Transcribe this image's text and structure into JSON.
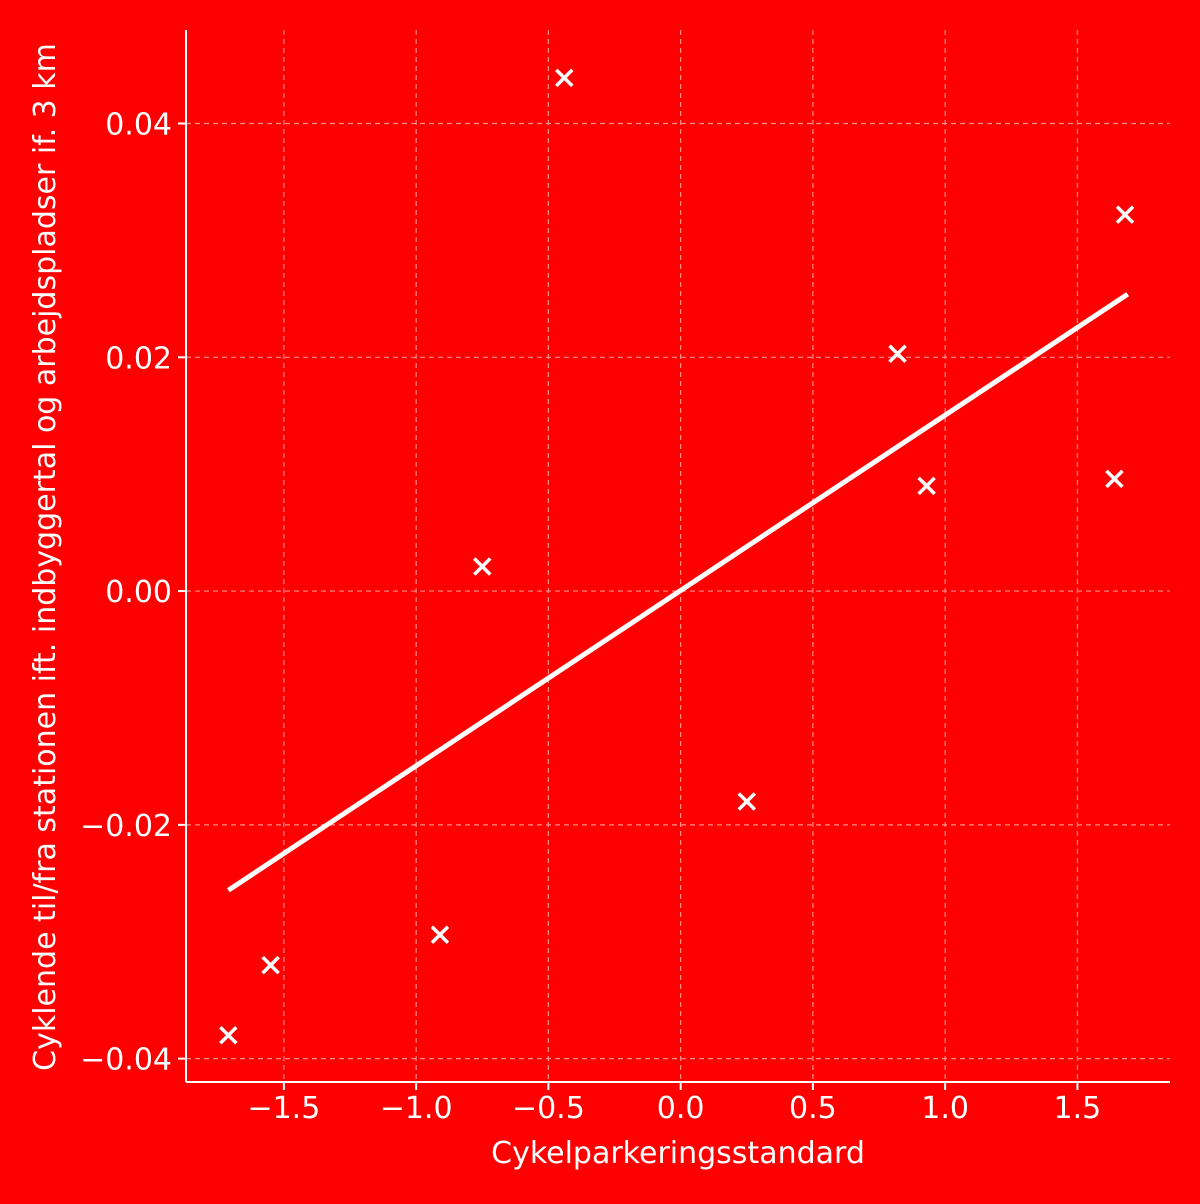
{
  "chart_data": {
    "type": "scatter",
    "title": "",
    "xlabel": "Cykelparkeringsstandard",
    "ylabel": "Cyklende til/fra stationen ift. indbyggertal og arbejdspladser if. 3 km",
    "xlim": [
      -1.87,
      1.85
    ],
    "ylim": [
      -0.042,
      0.048
    ],
    "x_ticks": [
      -1.5,
      -1.0,
      -0.5,
      0.0,
      0.5,
      1.0,
      1.5
    ],
    "x_tick_labels": [
      "−1.5",
      "−1.0",
      "−0.5",
      "0.0",
      "0.5",
      "1.0",
      "1.5"
    ],
    "y_ticks": [
      -0.04,
      -0.02,
      0.0,
      0.02,
      0.04
    ],
    "y_tick_labels": [
      "−0.04",
      "−0.02",
      "0.00",
      "0.02",
      "0.04"
    ],
    "grid": true,
    "marker": "x",
    "colors": {
      "background": "#ff0000",
      "foreground": "#ffffff"
    },
    "points": [
      {
        "x": -1.71,
        "y": -0.038
      },
      {
        "x": -1.55,
        "y": -0.032
      },
      {
        "x": -0.91,
        "y": -0.0294
      },
      {
        "x": -0.75,
        "y": 0.0021
      },
      {
        "x": -0.44,
        "y": 0.0439
      },
      {
        "x": 0.25,
        "y": -0.018
      },
      {
        "x": 0.82,
        "y": 0.0203
      },
      {
        "x": 0.93,
        "y": 0.009
      },
      {
        "x": 1.64,
        "y": 0.0096
      },
      {
        "x": 1.68,
        "y": 0.0322
      }
    ],
    "trend_line": {
      "x": [
        -1.71,
        1.69
      ],
      "y": [
        -0.0256,
        0.0254
      ]
    }
  }
}
